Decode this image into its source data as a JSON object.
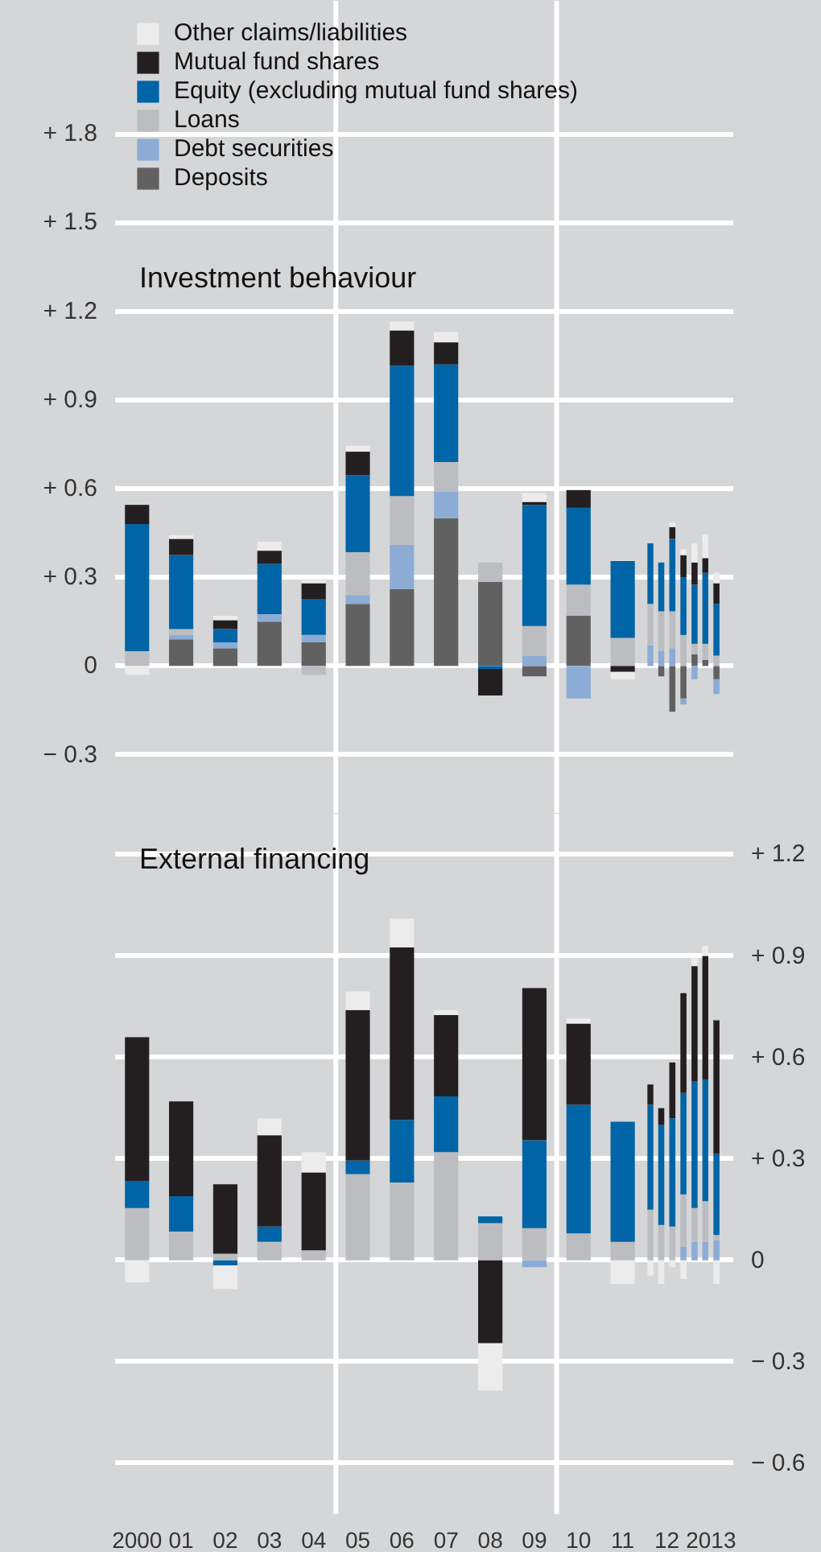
{
  "chart_data": [
    {
      "type": "bar",
      "title": "Investment behaviour",
      "stacked": true,
      "grid": "y",
      "legend": "top left",
      "tick_labels": "y",
      "x": [
        "2000-07",
        "2001-07",
        "2002-07",
        "2003-07",
        "2004-07",
        "2005-07",
        "2006-07",
        "2007-07",
        "2008-07",
        "2009-07",
        "2010-07",
        "2011-07",
        "2012-02-15",
        "2012-05-15",
        "2012-08-15",
        "2012-11-15",
        "2013-02-15",
        "2013-05-15",
        "2013-08-15"
      ],
      "xlim": [
        "2000",
        "2014"
      ],
      "ylim": [
        -0.5,
        2.25
      ],
      "yticks": [
        {
          "value": -0.3,
          "label": "− 0.3"
        },
        0,
        {
          "value": 0.3,
          "label": "+ 0.3"
        },
        {
          "value": 0.6,
          "label": "+ 0.6"
        },
        {
          "value": 0.9,
          "label": "+ 0.9"
        },
        {
          "value": 1.2,
          "label": "+ 1.2"
        },
        {
          "value": 1.5,
          "label": "+ 1.5"
        },
        {
          "value": 1.8,
          "label": "+ 1.8"
        }
      ],
      "ref_lines": [
        {
          "axis": "x",
          "value": "2005",
          "color": "#ffffff"
        },
        {
          "axis": "x",
          "value": "2010",
          "color": "#ffffff"
        }
      ],
      "series": [
        {
          "name": "Deposits",
          "color": "#616161",
          "values": [
            null,
            0.09,
            0.06,
            0.15,
            0.08,
            0.21,
            0.26,
            0.5,
            0.285,
            -0.035,
            0.17,
            null,
            null,
            -0.035,
            -0.155,
            -0.11,
            0.04,
            0.02,
            -0.045
          ]
        },
        {
          "name": "Debt securities",
          "color": "#8cacd6",
          "values": [
            null,
            0.015,
            0.02,
            0.025,
            0.025,
            0.03,
            0.15,
            0.09,
            null,
            0.035,
            -0.11,
            null,
            0.07,
            0.05,
            0.06,
            -0.02,
            -0.045,
            null,
            -0.05
          ]
        },
        {
          "name": "Loans",
          "color": "#bcbdc0",
          "values": [
            0.05,
            0.02,
            null,
            null,
            -0.03,
            0.145,
            0.165,
            0.1,
            0.065,
            0.1,
            0.105,
            0.095,
            0.14,
            0.135,
            0.125,
            0.105,
            0.035,
            0.055,
            0.035
          ]
        },
        {
          "name": "Equity (excluding mutual fund shares)",
          "color": "#0065a6",
          "values": [
            0.43,
            0.25,
            0.045,
            0.17,
            0.12,
            0.26,
            0.44,
            0.33,
            -0.01,
            0.41,
            0.26,
            0.26,
            0.205,
            0.165,
            0.245,
            0.195,
            0.2,
            0.24,
            0.175
          ]
        },
        {
          "name": "Mutual fund shares",
          "color": "#231f20",
          "values": [
            0.065,
            0.055,
            0.03,
            0.045,
            0.055,
            0.08,
            0.12,
            0.075,
            -0.09,
            0.01,
            0.06,
            -0.02,
            null,
            null,
            0.04,
            0.075,
            0.075,
            0.05,
            0.07
          ]
        },
        {
          "name": "Other claims/liabilities",
          "color": "#ececed",
          "values": [
            -0.03,
            0.013,
            0.015,
            0.03,
            0.01,
            0.02,
            0.03,
            0.035,
            null,
            0.03,
            null,
            -0.025,
            null,
            null,
            0.015,
            0.02,
            0.065,
            0.08,
            0.035
          ]
        }
      ]
    },
    {
      "type": "bar",
      "title": "External financing",
      "stacked": true,
      "grid": "y",
      "x": [
        "2000-07",
        "2001-07",
        "2002-07",
        "2003-07",
        "2004-07",
        "2005-07",
        "2006-07",
        "2007-07",
        "2008-07",
        "2009-07",
        "2010-07",
        "2011-07",
        "2012-02-15",
        "2012-05-15",
        "2012-08-15",
        "2012-11-15",
        "2013-02-15",
        "2013-05-15",
        "2013-08-15"
      ],
      "xlim": [
        "2000",
        "2014"
      ],
      "xticks": [
        {
          "value": "2000-07",
          "label": "2000"
        },
        {
          "value": "2001-07",
          "label": "01"
        },
        {
          "value": "2002-07",
          "label": "02"
        },
        {
          "value": "2003-07",
          "label": "03"
        },
        {
          "value": "2004-07",
          "label": "04"
        },
        {
          "value": "2005-07",
          "label": "05"
        },
        {
          "value": "2006-07",
          "label": "06"
        },
        {
          "value": "2007-07",
          "label": "07"
        },
        {
          "value": "2008-07",
          "label": "08"
        },
        {
          "value": "2009-07",
          "label": "09"
        },
        {
          "value": "2010-07",
          "label": "10"
        },
        {
          "value": "2011-07",
          "label": "11"
        },
        {
          "value": "2012-07",
          "label": "12"
        },
        {
          "value": "2013-07",
          "label": "2013"
        }
      ],
      "y2lim": [
        -0.75,
        1.32
      ],
      "y2ticks": [
        {
          "value": -0.6,
          "label": "− 0.6"
        },
        {
          "value": -0.3,
          "label": "− 0.3"
        },
        0,
        {
          "value": 0.3,
          "label": "+ 0.3"
        },
        {
          "value": 0.6,
          "label": "+ 0.6"
        },
        {
          "value": 0.9,
          "label": "+ 0.9"
        },
        {
          "value": 1.2,
          "label": "+ 1.2"
        }
      ],
      "ref_lines": [
        {
          "axis": "x",
          "value": "2005",
          "color": "#ffffff"
        },
        {
          "axis": "x",
          "value": "2010",
          "color": "#ffffff"
        }
      ],
      "series": [
        {
          "color": "#8cacd6",
          "axis": "y2",
          "values": [
            null,
            null,
            null,
            null,
            null,
            null,
            null,
            null,
            null,
            -0.02,
            null,
            null,
            null,
            null,
            null,
            0.04,
            0.055,
            0.055,
            0.06
          ]
        },
        {
          "color": "#bcbdc0",
          "axis": "y2",
          "values": [
            0.155,
            0.085,
            0.02,
            0.055,
            0.03,
            0.255,
            0.23,
            0.32,
            0.11,
            0.095,
            0.08,
            0.055,
            0.15,
            0.105,
            0.1,
            0.155,
            0.1,
            0.12,
            0.015
          ]
        },
        {
          "color": "#0065a6",
          "axis": "y2",
          "values": [
            0.08,
            0.105,
            -0.015,
            0.045,
            null,
            0.04,
            0.185,
            0.165,
            0.02,
            0.26,
            0.38,
            0.355,
            0.31,
            0.295,
            0.32,
            0.3,
            0.375,
            0.36,
            0.24
          ]
        },
        {
          "color": "#231f20",
          "axis": "y2",
          "values": [
            0.425,
            0.28,
            0.205,
            0.27,
            0.23,
            0.445,
            0.51,
            0.24,
            -0.245,
            0.45,
            0.24,
            null,
            0.06,
            0.05,
            0.165,
            0.295,
            0.34,
            0.365,
            0.395
          ]
        },
        {
          "color": "#ececed",
          "axis": "y2",
          "values": [
            -0.065,
            null,
            -0.07,
            0.05,
            0.06,
            0.055,
            0.085,
            0.015,
            -0.14,
            null,
            0.015,
            -0.07,
            -0.045,
            -0.07,
            -0.02,
            -0.055,
            0.025,
            0.03,
            -0.07
          ]
        }
      ]
    }
  ]
}
